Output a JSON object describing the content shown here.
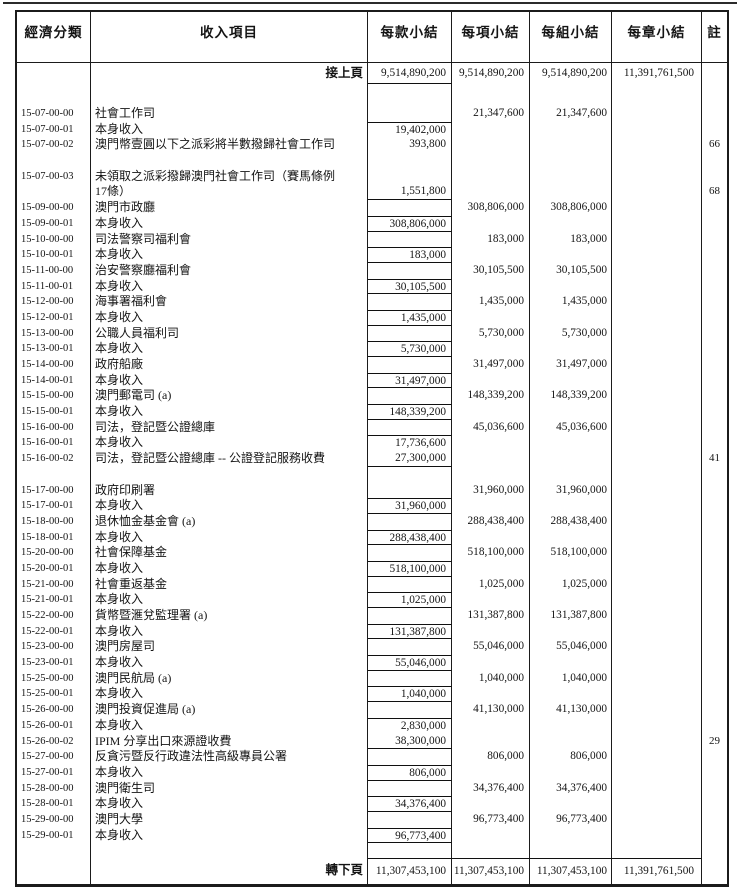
{
  "page": {
    "header_columns": [
      "經濟分類",
      "收入項目",
      "每款小結",
      "每項小結",
      "每組小結",
      "每章小結",
      "註"
    ],
    "carry_forward": {
      "label": "接上頁",
      "per_section": "9,514,890,200",
      "per_item": "9,514,890,200",
      "per_group": "9,514,890,200",
      "per_chapter": "11,391,761,500"
    },
    "rows": [
      {
        "code": "15-07-00-00",
        "item": "社會工作司",
        "per_item": "21,347,600",
        "per_group": "21,347,600"
      },
      {
        "code": "15-07-00-01",
        "item": "本身收入",
        "per_section": "19,402,000",
        "box": "t"
      },
      {
        "code": "15-07-00-02",
        "item": "澳門幣壹圓以下之派彩將半數撥歸社會工作司",
        "per_section": "393,800",
        "note": "66"
      },
      {
        "spacer": true
      },
      {
        "code": "15-07-00-03",
        "item": "未領取之派彩撥歸澳門社會工作司（賽馬條例"
      },
      {
        "item": "17條）",
        "per_section": "1,551,800",
        "box": "b",
        "note": "68"
      },
      {
        "code": "15-09-00-00",
        "item": "澳門市政廳",
        "per_item": "308,806,000",
        "per_group": "308,806,000"
      },
      {
        "code": "15-09-00-01",
        "item": "本身收入",
        "per_section": "308,806,000",
        "box": "tb"
      },
      {
        "code": "15-10-00-00",
        "item": "司法警察司福利會",
        "per_item": "183,000",
        "per_group": "183,000"
      },
      {
        "code": "15-10-00-01",
        "item": "本身收入",
        "per_section": "183,000",
        "box": "tb"
      },
      {
        "code": "15-11-00-00",
        "item": "治安警察廳福利會",
        "per_item": "30,105,500",
        "per_group": "30,105,500"
      },
      {
        "code": "15-11-00-01",
        "item": "本身收入",
        "per_section": "30,105,500",
        "box": "tb"
      },
      {
        "code": "15-12-00-00",
        "item": "海事署福利會",
        "per_item": "1,435,000",
        "per_group": "1,435,000"
      },
      {
        "code": "15-12-00-01",
        "item": "本身收入",
        "per_section": "1,435,000",
        "box": "tb"
      },
      {
        "code": "15-13-00-00",
        "item": "公職人員福利司",
        "per_item": "5,730,000",
        "per_group": "5,730,000"
      },
      {
        "code": "15-13-00-01",
        "item": "本身收入",
        "per_section": "5,730,000",
        "box": "tb"
      },
      {
        "code": "15-14-00-00",
        "item": "政府船廠",
        "per_item": "31,497,000",
        "per_group": "31,497,000"
      },
      {
        "code": "15-14-00-01",
        "item": "本身收入",
        "per_section": "31,497,000",
        "box": "tb"
      },
      {
        "code": "15-15-00-00",
        "item": "澳門郵電司 (a)",
        "per_item": "148,339,200",
        "per_group": "148,339,200"
      },
      {
        "code": "15-15-00-01",
        "item": "本身收入",
        "per_section": "148,339,200",
        "box": "tb"
      },
      {
        "code": "15-16-00-00",
        "item": "司法，登記暨公證總庫",
        "per_item": "45,036,600",
        "per_group": "45,036,600"
      },
      {
        "code": "15-16-00-01",
        "item": "本身收入",
        "per_section": "17,736,600",
        "box": "t"
      },
      {
        "code": "15-16-00-02",
        "item": "司法，登記暨公證總庫 -- 公證登記服務收費",
        "per_section": "27,300,000",
        "box": "b",
        "note": "41"
      },
      {
        "spacer": true
      },
      {
        "code": "15-17-00-00",
        "item": "政府印刷署",
        "per_item": "31,960,000",
        "per_group": "31,960,000"
      },
      {
        "code": "15-17-00-01",
        "item": "本身收入",
        "per_section": "31,960,000",
        "box": "tb"
      },
      {
        "code": "15-18-00-00",
        "item": "退休恤金基金會 (a)",
        "per_item": "288,438,400",
        "per_group": "288,438,400"
      },
      {
        "code": "15-18-00-01",
        "item": "本身收入",
        "per_section": "288,438,400",
        "box": "tb"
      },
      {
        "code": "15-20-00-00",
        "item": "社會保障基金",
        "per_item": "518,100,000",
        "per_group": "518,100,000"
      },
      {
        "code": "15-20-00-01",
        "item": "本身收入",
        "per_section": "518,100,000",
        "box": "tb"
      },
      {
        "code": "15-21-00-00",
        "item": "社會重返基金",
        "per_item": "1,025,000",
        "per_group": "1,025,000"
      },
      {
        "code": "15-21-00-01",
        "item": "本身收入",
        "per_section": "1,025,000",
        "box": "tb"
      },
      {
        "code": "15-22-00-00",
        "item": "貨幣暨滙兌監理署 (a)",
        "per_item": "131,387,800",
        "per_group": "131,387,800"
      },
      {
        "code": "15-22-00-01",
        "item": "本身收入",
        "per_section": "131,387,800",
        "box": "tb"
      },
      {
        "code": "15-23-00-00",
        "item": "澳門房屋司",
        "per_item": "55,046,000",
        "per_group": "55,046,000"
      },
      {
        "code": "15-23-00-01",
        "item": "本身收入",
        "per_section": "55,046,000",
        "box": "tb"
      },
      {
        "code": "15-25-00-00",
        "item": "澳門民航局 (a)",
        "per_item": "1,040,000",
        "per_group": "1,040,000"
      },
      {
        "code": "15-25-00-01",
        "item": "本身收入",
        "per_section": "1,040,000",
        "box": "tb"
      },
      {
        "code": "15-26-00-00",
        "item": "澳門投資促進局 (a)",
        "per_item": "41,130,000",
        "per_group": "41,130,000"
      },
      {
        "code": "15-26-00-01",
        "item": "本身收入",
        "per_section": "2,830,000",
        "box": "t"
      },
      {
        "code": "15-26-00-02",
        "item": "IPIM 分享出口來源證收費",
        "per_section": "38,300,000",
        "box": "b",
        "note": "29"
      },
      {
        "code": "15-27-00-00",
        "item": "反貪污暨反行政違法性高級專員公署",
        "per_item": "806,000",
        "per_group": "806,000"
      },
      {
        "code": "15-27-00-01",
        "item": "本身收入",
        "per_section": "806,000",
        "box": "tb"
      },
      {
        "code": "15-28-00-00",
        "item": "澳門衛生司",
        "per_item": "34,376,400",
        "per_group": "34,376,400"
      },
      {
        "code": "15-28-00-01",
        "item": "本身收入",
        "per_section": "34,376,400",
        "box": "tb"
      },
      {
        "code": "15-29-00-00",
        "item": "澳門大學",
        "per_item": "96,773,400",
        "per_group": "96,773,400"
      },
      {
        "code": "15-29-00-01",
        "item": "本身收入",
        "per_section": "96,773,400",
        "box": "tb"
      }
    ],
    "carry_down": {
      "label": "轉下頁",
      "per_section": "11,307,453,100",
      "per_item": "11,307,453,100",
      "per_group": "11,307,453,100",
      "per_chapter": "11,391,761,500"
    }
  }
}
